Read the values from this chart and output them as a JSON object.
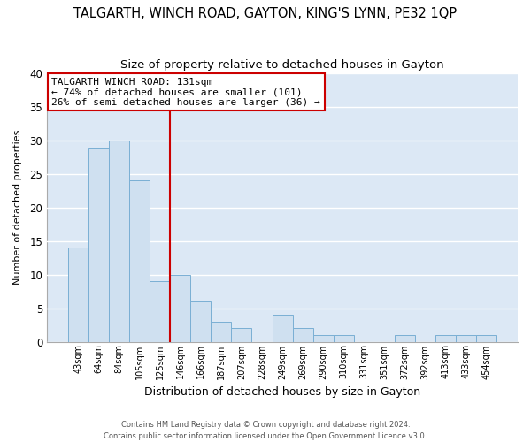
{
  "title": "TALGARTH, WINCH ROAD, GAYTON, KING'S LYNN, PE32 1QP",
  "subtitle": "Size of property relative to detached houses in Gayton",
  "xlabel": "Distribution of detached houses by size in Gayton",
  "ylabel": "Number of detached properties",
  "categories": [
    "43sqm",
    "64sqm",
    "84sqm",
    "105sqm",
    "125sqm",
    "146sqm",
    "166sqm",
    "187sqm",
    "207sqm",
    "228sqm",
    "249sqm",
    "269sqm",
    "290sqm",
    "310sqm",
    "331sqm",
    "351sqm",
    "372sqm",
    "392sqm",
    "413sqm",
    "433sqm",
    "454sqm"
  ],
  "values": [
    14,
    29,
    30,
    24,
    9,
    10,
    6,
    3,
    2,
    0,
    4,
    2,
    1,
    1,
    0,
    0,
    1,
    0,
    1,
    1,
    1
  ],
  "bar_color": "#cfe0f0",
  "bar_edge_color": "#7aafd4",
  "vline_x": 4.5,
  "vline_color": "#cc0000",
  "annotation_title": "TALGARTH WINCH ROAD: 131sqm",
  "annotation_line1": "← 74% of detached houses are smaller (101)",
  "annotation_line2": "26% of semi-detached houses are larger (36) →",
  "annotation_box_color": "#ffffff",
  "annotation_box_edge_color": "#cc0000",
  "ylim": [
    0,
    40
  ],
  "footer1": "Contains HM Land Registry data © Crown copyright and database right 2024.",
  "footer2": "Contains public sector information licensed under the Open Government Licence v3.0.",
  "fig_background_color": "#ffffff",
  "plot_background": "#dce8f5",
  "grid_color": "#ffffff",
  "title_fontsize": 10.5,
  "subtitle_fontsize": 9.5,
  "ylabel_fontsize": 8,
  "xlabel_fontsize": 9
}
